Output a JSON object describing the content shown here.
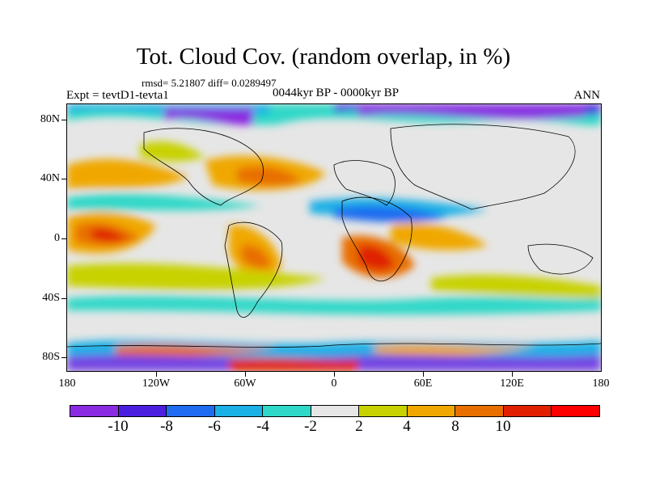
{
  "header": {
    "title": "Tot. Cloud Cov. (random overlap, in %)",
    "stats": "rmsd= 5.21807 diff= 0.0289497",
    "period": "0044kyr BP - 0000kyr BP",
    "experiment": "Expt = tevtD1-tevta1",
    "season": "ANN"
  },
  "axes": {
    "y_labels": [
      "80N",
      "40N",
      "0",
      "40S",
      "80S"
    ],
    "x_labels": [
      "180",
      "120W",
      "60W",
      "0",
      "60E",
      "120E",
      "180"
    ]
  },
  "colorbar": {
    "labels": [
      "-10",
      "-8",
      "-6",
      "-4",
      "-2",
      "2",
      "4",
      "8",
      "10"
    ],
    "colors": [
      "#8b2be2",
      "#4b1ee0",
      "#1f6cf0",
      "#1bb0e6",
      "#2fd8c8",
      "#e6e6e6",
      "#c8d200",
      "#f0a800",
      "#e86e00",
      "#e02000",
      "#ff0000"
    ]
  }
}
